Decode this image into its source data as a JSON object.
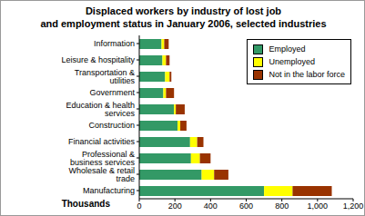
{
  "chart_data": {
    "type": "bar",
    "title": "Displaced workers by industry of lost job\nand employment status in January 2006, selected industries",
    "x_label": "Thousands",
    "orientation": "horizontal",
    "stacked": true,
    "grid": false,
    "legend": "upper right",
    "categories": [
      "Information",
      "Leisure & hospitality",
      "Transportation & utilities",
      "Government",
      "Education & health services",
      "Construction",
      "Financial activities",
      "Professional & business services",
      "Wholesale & retail trade",
      "Manufacturing"
    ],
    "series": [
      {
        "name": "Employed",
        "color": "#339966",
        "values": [
          125,
          130,
          145,
          135,
          195,
          215,
          285,
          290,
          350,
          700
        ]
      },
      {
        "name": "Unemployed",
        "color": "#FFFF00",
        "values": [
          15,
          20,
          25,
          15,
          10,
          15,
          40,
          50,
          70,
          160
        ]
      },
      {
        "name": "Not in the labor force",
        "color": "#993300",
        "values": [
          25,
          20,
          10,
          45,
          50,
          35,
          35,
          60,
          80,
          220
        ]
      }
    ],
    "xlim": [
      0,
      1200
    ],
    "xticks": [
      0,
      200,
      400,
      600,
      800,
      {
        "value": 1000,
        "label": "1,000"
      },
      {
        "value": 1200,
        "label": "1,200"
      }
    ]
  }
}
